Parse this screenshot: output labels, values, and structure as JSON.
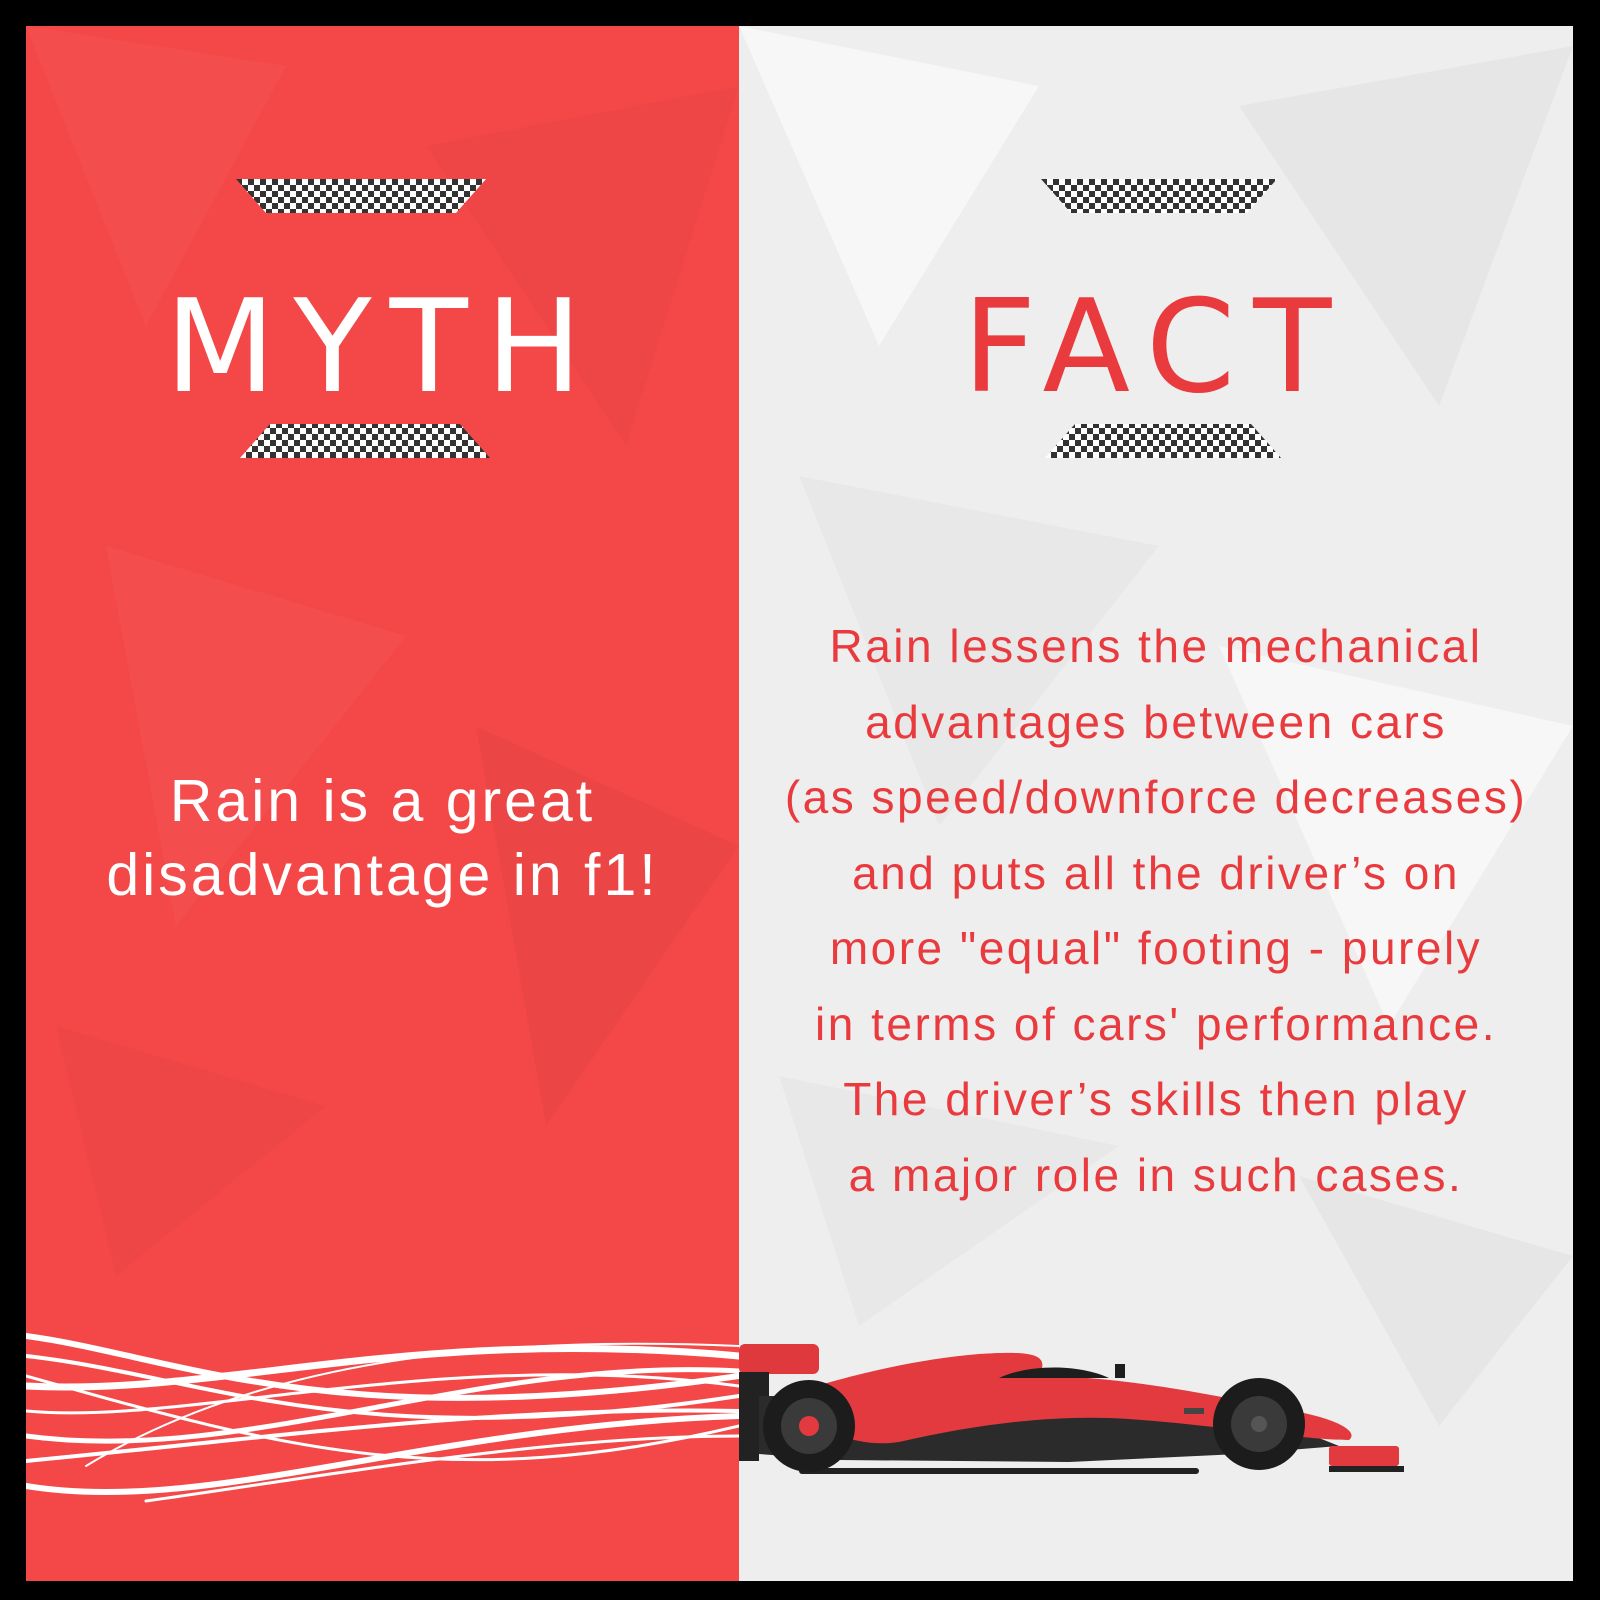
{
  "myth": {
    "heading": "MYTH",
    "text_lines": [
      "Rain is a great",
      "disadvantage in f1!"
    ]
  },
  "fact": {
    "heading": "FACT",
    "text_lines": [
      "Rain lessens the mechanical",
      "advantages between cars",
      "(as speed/downforce decreases)",
      "and puts all the driver’s on",
      "more \"equal\" footing - purely",
      "in terms of cars' performance.",
      "The driver’s skills then play",
      "a major role in such cases."
    ]
  },
  "colors": {
    "accent_red": "#e93a3e",
    "panel_red": "#f44848",
    "panel_light": "#eeeeee",
    "border": "#000000"
  },
  "icons": [
    "checkered-flag-icon",
    "race-car-icon",
    "speed-streaks"
  ]
}
